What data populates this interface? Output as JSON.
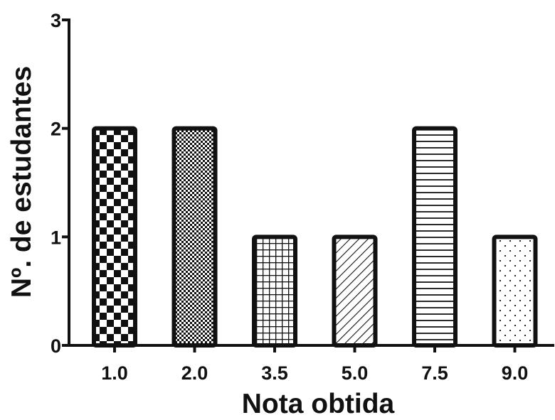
{
  "chart_data": {
    "type": "bar",
    "categories": [
      "1.0",
      "2.0",
      "3.5",
      "5.0",
      "7.5",
      "9.0"
    ],
    "values": [
      2,
      2,
      1,
      1,
      2,
      1
    ],
    "patterns": [
      "checkerboard",
      "fine-checkerboard",
      "grid",
      "diagonal-stripes",
      "horizontal-stripes",
      "dots"
    ],
    "title": "",
    "xlabel": "Nota obtida",
    "ylabel": "Nº. de estudantes",
    "ylim": [
      0,
      3
    ],
    "yticks": [
      0,
      1,
      2,
      3
    ],
    "grid": false,
    "bar_color": "#111111",
    "background": "#ffffff"
  }
}
